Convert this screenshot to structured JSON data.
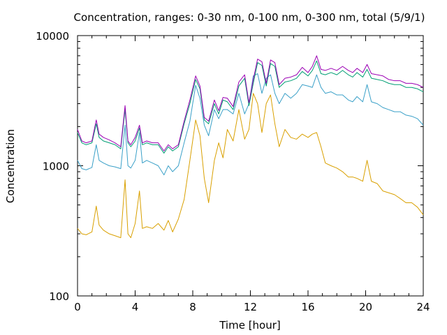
{
  "chart_data": {
    "type": "line",
    "title": "Concentration, ranges: 0-30 nm, 0-100 nm, 0-300 nm, total (5/9/1)",
    "xlabel": "Time [hour]",
    "ylabel": "Concentration",
    "xlim": [
      0,
      24
    ],
    "ylim": [
      100,
      10000
    ],
    "yscale": "log",
    "grid": false,
    "x_ticks": [
      0,
      4,
      8,
      12,
      16,
      20,
      24
    ],
    "x_tick_labels": [
      "0",
      "4",
      "8",
      "12",
      "16",
      "20",
      "24"
    ],
    "y_ticks": [
      100,
      1000,
      10000
    ],
    "y_tick_labels": [
      "100",
      "1000",
      "10000"
    ],
    "x": [
      0,
      0.3,
      0.6,
      1.0,
      1.3,
      1.5,
      1.8,
      2.2,
      2.6,
      3.0,
      3.3,
      3.5,
      3.7,
      4.0,
      4.3,
      4.5,
      4.8,
      5.2,
      5.6,
      6.0,
      6.3,
      6.6,
      7.0,
      7.4,
      7.8,
      8.2,
      8.5,
      8.8,
      9.1,
      9.5,
      9.8,
      10.1,
      10.4,
      10.8,
      11.2,
      11.6,
      11.9,
      12.2,
      12.5,
      12.8,
      13.1,
      13.4,
      13.7,
      14.0,
      14.4,
      14.8,
      15.2,
      15.6,
      16.0,
      16.3,
      16.6,
      16.9,
      17.2,
      17.6,
      18.0,
      18.4,
      18.8,
      19.1,
      19.4,
      19.8,
      20.1,
      20.4,
      20.8,
      21.2,
      21.6,
      22.0,
      22.4,
      22.8,
      23.2,
      23.6,
      24.0
    ],
    "colors": [
      "#d9a000",
      "#3aa0c8",
      "#009e73",
      "#9b00b4"
    ],
    "series": [
      {
        "values": [
          330,
          300,
          295,
          310,
          490,
          350,
          320,
          300,
          290,
          280,
          780,
          300,
          280,
          360,
          640,
          330,
          340,
          330,
          360,
          320,
          380,
          310,
          390,
          550,
          1100,
          2250,
          1700,
          800,
          520,
          1100,
          1500,
          1150,
          1900,
          1550,
          2700,
          1600,
          1900,
          3600,
          3000,
          1800,
          3000,
          3500,
          2100,
          1400,
          1900,
          1650,
          1600,
          1750,
          1650,
          1750,
          1800,
          1400,
          1050,
          1000,
          960,
          900,
          820,
          820,
          800,
          760,
          1100,
          760,
          730,
          640,
          620,
          600,
          560,
          520,
          520,
          480,
          420
        ]
      },
      {
        "values": [
          1100,
          950,
          930,
          970,
          1450,
          1100,
          1050,
          1000,
          980,
          950,
          2050,
          1000,
          960,
          1100,
          1800,
          1050,
          1100,
          1050,
          1000,
          850,
          1000,
          900,
          1000,
          1500,
          2200,
          4150,
          3300,
          2050,
          1700,
          2700,
          2300,
          2700,
          2700,
          2500,
          3600,
          2500,
          3000,
          4900,
          5100,
          3600,
          4700,
          5000,
          3600,
          3000,
          3600,
          3300,
          3600,
          4200,
          4100,
          4000,
          5000,
          4000,
          3600,
          3700,
          3500,
          3500,
          3200,
          3100,
          3400,
          3100,
          4200,
          3100,
          3000,
          2800,
          2700,
          2600,
          2600,
          2450,
          2400,
          2300,
          2050
        ]
      },
      {
        "values": [
          1800,
          1500,
          1450,
          1500,
          2100,
          1650,
          1550,
          1500,
          1450,
          1350,
          2700,
          1500,
          1400,
          1550,
          1950,
          1450,
          1500,
          1450,
          1450,
          1250,
          1400,
          1300,
          1400,
          2100,
          3000,
          4600,
          3900,
          2250,
          2100,
          3000,
          2500,
          3200,
          3100,
          2700,
          4100,
          4700,
          2900,
          4300,
          6200,
          5900,
          4100,
          6100,
          5800,
          4000,
          4400,
          4500,
          4700,
          5300,
          4900,
          5400,
          6400,
          5100,
          5000,
          5200,
          5000,
          5400,
          5000,
          4800,
          5200,
          4800,
          5500,
          4700,
          4600,
          4500,
          4300,
          4200,
          4200,
          4000,
          4000,
          3900,
          3700
        ]
      },
      {
        "values": [
          1900,
          1550,
          1500,
          1550,
          2250,
          1750,
          1650,
          1580,
          1500,
          1400,
          2900,
          1550,
          1450,
          1650,
          2050,
          1500,
          1550,
          1500,
          1500,
          1300,
          1450,
          1350,
          1450,
          2200,
          3200,
          4900,
          4100,
          2350,
          2200,
          3200,
          2650,
          3350,
          3300,
          2850,
          4400,
          5000,
          3050,
          4600,
          6600,
          6300,
          4300,
          6500,
          6200,
          4200,
          4700,
          4800,
          5000,
          5700,
          5200,
          5800,
          7000,
          5500,
          5400,
          5600,
          5400,
          5800,
          5400,
          5200,
          5600,
          5200,
          6000,
          5100,
          5000,
          4900,
          4600,
          4500,
          4500,
          4300,
          4300,
          4200,
          4000
        ]
      }
    ]
  }
}
